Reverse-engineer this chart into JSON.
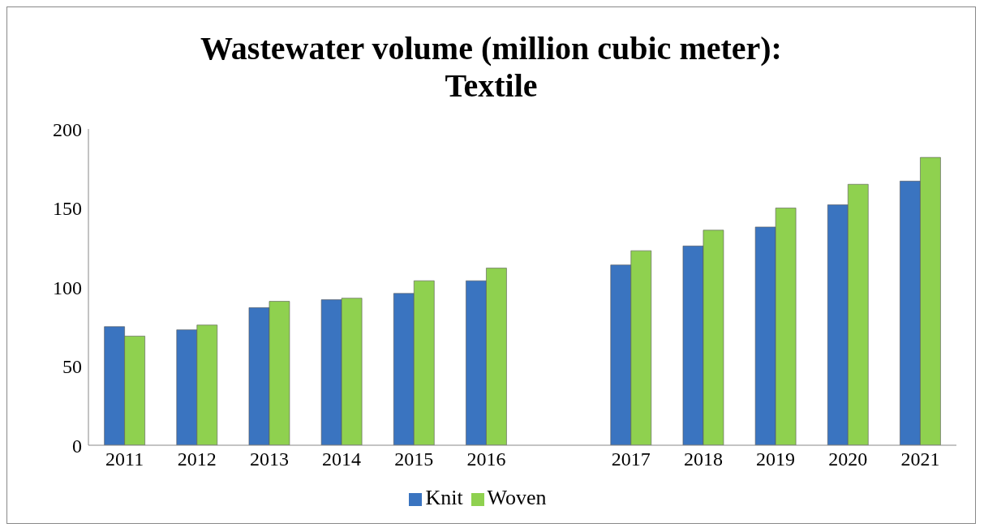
{
  "chart_data": {
    "type": "bar",
    "title": "Wastewater volume (million cubic meter): Textile",
    "categories": [
      "2011",
      "2012",
      "2013",
      "2014",
      "2015",
      "2016",
      null,
      "2017",
      "2018",
      "2019",
      "2020",
      "2021"
    ],
    "series": [
      {
        "name": "Knit",
        "color": "#3a74c0",
        "values": [
          75,
          73,
          87,
          92,
          96,
          104,
          null,
          114,
          126,
          138,
          152,
          167
        ]
      },
      {
        "name": "Woven",
        "color": "#8fd14f",
        "values": [
          69,
          76,
          91,
          93,
          104,
          112,
          null,
          123,
          136,
          150,
          165,
          182
        ]
      }
    ],
    "ylim": [
      0,
      200
    ],
    "yticks": [
      0,
      50,
      100,
      150,
      200
    ],
    "grid": false,
    "legend": "bottom"
  }
}
